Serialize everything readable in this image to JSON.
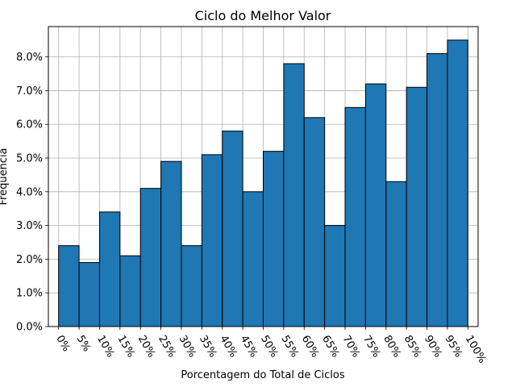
{
  "chart_data": {
    "type": "bar",
    "title": "Ciclo do Melhor Valor",
    "xlabel": "Porcentagem do Total de Ciclos",
    "ylabel": "Frequência",
    "x_tick_labels": [
      "0%",
      "5%",
      "10%",
      "15%",
      "20%",
      "25%",
      "30%",
      "35%",
      "40%",
      "45%",
      "50%",
      "55%",
      "60%",
      "65%",
      "70%",
      "75%",
      "80%",
      "85%",
      "90%",
      "95%",
      "100%"
    ],
    "bin_edges": [
      0,
      5,
      10,
      15,
      20,
      25,
      30,
      35,
      40,
      45,
      50,
      55,
      60,
      65,
      70,
      75,
      80,
      85,
      90,
      95,
      100
    ],
    "values": [
      2.4,
      1.9,
      3.4,
      2.1,
      4.1,
      4.9,
      2.4,
      5.1,
      5.8,
      4.0,
      5.2,
      7.8,
      6.2,
      3.0,
      6.5,
      7.2,
      4.3,
      7.1,
      8.1,
      8.5
    ],
    "y_tick_labels": [
      "0.0%",
      "1.0%",
      "2.0%",
      "3.0%",
      "4.0%",
      "5.0%",
      "6.0%",
      "7.0%",
      "8.0%"
    ],
    "y_ticks": [
      0,
      1,
      2,
      3,
      4,
      5,
      6,
      7,
      8
    ],
    "ylim": [
      0,
      8.9
    ],
    "xlim": [
      -2.5,
      102.5
    ],
    "grid": true,
    "bar_color": "#1f77b4",
    "bar_edge_color": "#000000"
  }
}
